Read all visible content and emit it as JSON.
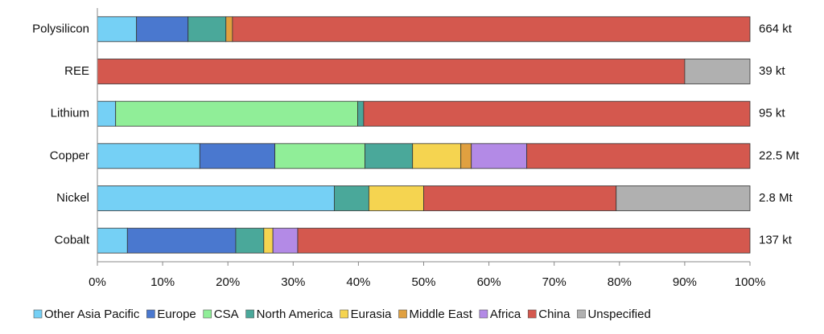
{
  "chart_data": {
    "type": "stacked-bar-horizontal",
    "categories": [
      "Polysilicon",
      "REE",
      "Lithium",
      "Copper",
      "Nickel",
      "Cobalt"
    ],
    "totals": [
      "664 kt",
      "39 kt",
      "95 kt",
      "22.5 Mt",
      "2.8 Mt",
      "137 kt"
    ],
    "series": [
      {
        "name": "Other Asia Pacific",
        "color": "#75d0f5",
        "values": [
          6.0,
          0,
          2.8,
          15.7,
          36.3,
          4.6
        ]
      },
      {
        "name": "Europe",
        "color": "#4a78cf",
        "values": [
          7.9,
          0,
          0,
          11.5,
          0,
          16.6
        ]
      },
      {
        "name": "CSA",
        "color": "#90ee98",
        "values": [
          0,
          0,
          37.1,
          13.8,
          0,
          0
        ]
      },
      {
        "name": "North America",
        "color": "#4aa89a",
        "values": [
          5.8,
          0,
          0.9,
          7.3,
          5.3,
          4.3
        ]
      },
      {
        "name": "Eurasia",
        "color": "#f5d450",
        "values": [
          0,
          0,
          0,
          7.4,
          8.4,
          1.4
        ]
      },
      {
        "name": "Middle East",
        "color": "#e0a040",
        "values": [
          1.0,
          0,
          0,
          1.6,
          0,
          0
        ]
      },
      {
        "name": "Africa",
        "color": "#b38ae6",
        "values": [
          0,
          0,
          0,
          8.5,
          0,
          3.8
        ]
      },
      {
        "name": "China",
        "color": "#d4584e",
        "values": [
          79.3,
          90,
          59.2,
          34.2,
          29.5,
          69.3
        ]
      },
      {
        "name": "Unspecified",
        "color": "#b0b0b0",
        "values": [
          0,
          10,
          0,
          0,
          20.5,
          0
        ]
      }
    ],
    "xlim": [
      0,
      100
    ],
    "xticks": [
      {
        "value": 0,
        "label": "0%"
      },
      {
        "value": 10,
        "label": "10%"
      },
      {
        "value": 20,
        "label": "20%"
      },
      {
        "value": 30,
        "label": "30%"
      },
      {
        "value": 40,
        "label": "40%"
      },
      {
        "value": 50,
        "label": "50%"
      },
      {
        "value": 60,
        "label": "60%"
      },
      {
        "value": 70,
        "label": "70%"
      },
      {
        "value": 80,
        "label": "80%"
      },
      {
        "value": 90,
        "label": "90%"
      },
      {
        "value": 100,
        "label": "100%"
      }
    ]
  }
}
